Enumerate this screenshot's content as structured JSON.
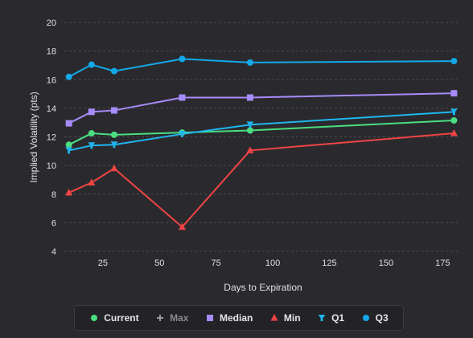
{
  "chart_data": {
    "type": "line",
    "xlabel": "Days to Expiration",
    "ylabel": "Implied Volatility (pts)",
    "xlim": [
      8,
      182
    ],
    "ylim": [
      4,
      20
    ],
    "xticks": [
      25,
      50,
      75,
      100,
      125,
      150,
      175
    ],
    "yticks": [
      4,
      6,
      8,
      10,
      12,
      14,
      16,
      18,
      20
    ],
    "grid": true,
    "legend_position": "bottom",
    "series": [
      {
        "name": "Current",
        "color": "#4ade80",
        "marker": "circle",
        "visible": true,
        "x": [
          10,
          20,
          30,
          60,
          90,
          180
        ],
        "y": [
          11.45,
          12.25,
          12.15,
          12.3,
          12.45,
          13.15
        ]
      },
      {
        "name": "Max",
        "color": "#9a9a9a",
        "marker": "plus",
        "visible": false,
        "x": [],
        "y": []
      },
      {
        "name": "Median",
        "color": "#a78bfa",
        "marker": "square",
        "visible": true,
        "x": [
          10,
          20,
          30,
          60,
          90,
          180
        ],
        "y": [
          12.95,
          13.75,
          13.85,
          14.75,
          14.75,
          15.05
        ]
      },
      {
        "name": "Min",
        "color": "#f04444",
        "marker": "triangle",
        "visible": true,
        "x": [
          10,
          20,
          30,
          60,
          90,
          180
        ],
        "y": [
          8.1,
          8.8,
          9.8,
          5.7,
          11.05,
          12.25
        ]
      },
      {
        "name": "Q1",
        "color": "#1fb6f0",
        "marker": "triangle-down",
        "visible": true,
        "x": [
          10,
          20,
          30,
          60,
          90,
          180
        ],
        "y": [
          11.05,
          11.4,
          11.45,
          12.2,
          12.85,
          13.75
        ]
      },
      {
        "name": "Q3",
        "color": "#13a9e8",
        "marker": "circle",
        "visible": true,
        "x": [
          10,
          20,
          30,
          60,
          90,
          180
        ],
        "y": [
          16.2,
          17.05,
          16.6,
          17.45,
          17.2,
          17.3
        ]
      }
    ]
  }
}
